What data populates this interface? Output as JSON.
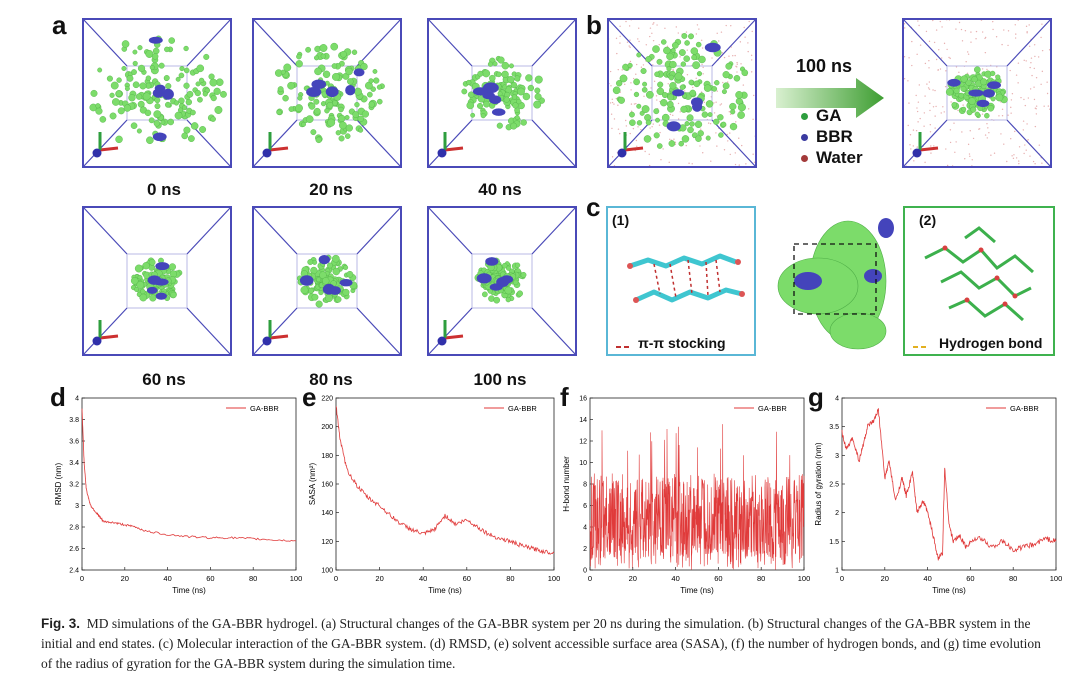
{
  "panel_letters": {
    "a": "a",
    "b": "b",
    "c": "c",
    "d": "d",
    "e": "e",
    "f": "f",
    "g": "g"
  },
  "time_labels": [
    "0 ns",
    "20 ns",
    "40 ns",
    "60 ns",
    "80 ns",
    "100 ns"
  ],
  "panel_b": {
    "arrow_label": "100 ns",
    "legend": [
      {
        "name": "GA",
        "color": "#2e9e3e"
      },
      {
        "name": "BBR",
        "color": "#3a3aa0"
      },
      {
        "name": "Water",
        "color": "#a33a3a"
      }
    ]
  },
  "panel_c": {
    "inset1_label": "(1)",
    "inset1_legend": "π-π stocking",
    "inset2_label": "(2)",
    "inset2_legend": "Hydrogen bond"
  },
  "colors": {
    "ga_green": "#7cdc6a",
    "bbr_blue": "#4444bb",
    "box_line": "#4a4ab8",
    "plot_red": "#e03a3a",
    "inset_cyan": "#5ab7d6",
    "inset_green": "#3fb24f"
  },
  "chart_data": [
    {
      "type": "line",
      "id": "d",
      "title": "",
      "series": [
        {
          "name": "GA-BBR",
          "x": [
            0,
            1,
            2,
            4,
            6,
            8,
            10,
            15,
            20,
            25,
            30,
            40,
            50,
            60,
            70,
            80,
            90,
            100
          ],
          "y": [
            3.9,
            3.4,
            3.15,
            3.0,
            2.95,
            2.9,
            2.85,
            2.84,
            2.82,
            2.8,
            2.76,
            2.73,
            2.71,
            2.7,
            2.7,
            2.69,
            2.68,
            2.67
          ]
        }
      ],
      "xlabel": "Time (ns)",
      "ylabel": "RMSD (nm)",
      "xlim": [
        0,
        100
      ],
      "ylim": [
        2.4,
        4.0
      ],
      "xticks": [
        0,
        20,
        40,
        60,
        80,
        100
      ],
      "yticks": [
        2.4,
        2.6,
        2.8,
        3.0,
        3.2,
        3.4,
        3.6,
        3.8,
        4.0
      ]
    },
    {
      "type": "line",
      "id": "e",
      "series": [
        {
          "name": "GA-BBR",
          "x": [
            0,
            2,
            5,
            10,
            15,
            20,
            25,
            30,
            35,
            40,
            45,
            50,
            55,
            60,
            65,
            70,
            75,
            80,
            85,
            90,
            95,
            100
          ],
          "y": [
            215,
            190,
            170,
            158,
            150,
            145,
            138,
            132,
            128,
            125,
            128,
            138,
            132,
            135,
            130,
            125,
            122,
            120,
            117,
            115,
            113,
            112
          ]
        }
      ],
      "xlabel": "Time (ns)",
      "ylabel": "SASA (nm²)",
      "xlim": [
        0,
        100
      ],
      "ylim": [
        100,
        220
      ],
      "xticks": [
        0,
        20,
        40,
        60,
        80,
        100
      ],
      "yticks": [
        100,
        120,
        140,
        160,
        180,
        200,
        220
      ]
    },
    {
      "type": "line",
      "id": "f",
      "series": [
        {
          "name": "GA-BBR",
          "x": [
            0,
            100
          ],
          "y": [
            5,
            5
          ]
        }
      ],
      "noise": {
        "center": 5,
        "amplitude_low": 0,
        "amplitude_high": 14
      },
      "xlabel": "Time (ns)",
      "ylabel": "H-bond number",
      "xlim": [
        0,
        100
      ],
      "ylim": [
        0,
        16
      ],
      "xticks": [
        0,
        20,
        40,
        60,
        80,
        100
      ],
      "yticks": [
        0,
        2,
        4,
        6,
        8,
        10,
        12,
        14,
        16
      ]
    },
    {
      "type": "line",
      "id": "g",
      "series": [
        {
          "name": "GA-BBR",
          "x": [
            0,
            2,
            5,
            8,
            10,
            12,
            15,
            17,
            20,
            22,
            25,
            28,
            30,
            33,
            35,
            38,
            40,
            42,
            45,
            47,
            48,
            50,
            52,
            55,
            58,
            60,
            65,
            70,
            75,
            80,
            85,
            90,
            95,
            100
          ],
          "y": [
            3.4,
            3.1,
            3.3,
            2.9,
            3.2,
            3.5,
            3.6,
            3.8,
            2.6,
            2.9,
            2.2,
            2.6,
            2.3,
            2.7,
            2.0,
            2.2,
            2.0,
            1.7,
            1.2,
            1.3,
            2.8,
            1.8,
            1.5,
            1.6,
            1.4,
            1.5,
            1.55,
            1.4,
            1.5,
            1.35,
            1.4,
            1.45,
            1.55,
            1.5
          ]
        }
      ],
      "xlabel": "Time (ns)",
      "ylabel": "Radius of gyration (nm)",
      "xlim": [
        0,
        100
      ],
      "ylim": [
        1.0,
        4.0
      ],
      "xticks": [
        0,
        20,
        40,
        60,
        80,
        100
      ],
      "yticks": [
        1.0,
        1.5,
        2.0,
        2.5,
        3.0,
        3.5,
        4.0
      ]
    }
  ],
  "caption": {
    "prefix": "Fig. 3.",
    "text": "MD simulations of the GA-BBR hydrogel. (a) Structural changes of the GA-BBR system per 20 ns during the simulation. (b) Structural changes of the GA-BBR system in the initial and end states. (c) Molecular interaction of the GA-BBR system. (d) RMSD, (e) solvent accessible surface area (SASA), (f) the number of hydrogen bonds, and (g) time evolution of the radius of gyration for the GA-BBR system during the simulation time."
  }
}
